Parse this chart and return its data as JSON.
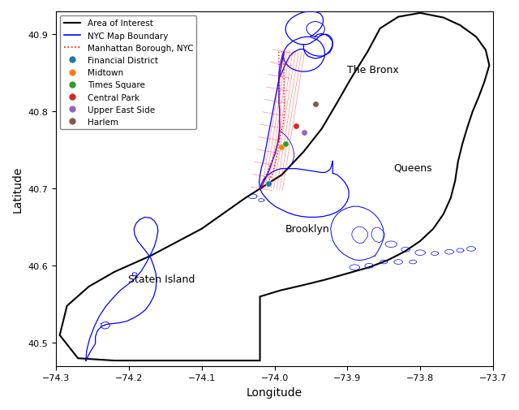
{
  "xlabel": "Longitude",
  "ylabel": "Latitude",
  "xlim": [
    -74.3,
    -73.7
  ],
  "ylim": [
    40.47,
    40.93
  ],
  "xticks": [
    -74.3,
    -74.2,
    -74.1,
    -74.0,
    -73.9,
    -73.8,
    -73.7
  ],
  "yticks": [
    40.5,
    40.6,
    40.7,
    40.8,
    40.9
  ],
  "poi": [
    {
      "name": "Financial District",
      "lon": -74.008,
      "lat": 40.707,
      "color": "#1f77b4"
    },
    {
      "name": "Midtown",
      "lon": -73.99,
      "lat": 40.754,
      "color": "#ff7f0e"
    },
    {
      "name": "Times Square",
      "lon": -73.985,
      "lat": 40.758,
      "color": "#2ca02c"
    },
    {
      "name": "Central Park",
      "lon": -73.97,
      "lat": 40.782,
      "color": "#d62728"
    },
    {
      "name": "Upper East Side",
      "lon": -73.959,
      "lat": 40.773,
      "color": "#9467bd"
    },
    {
      "name": "Harlem",
      "lon": -73.944,
      "lat": 40.81,
      "color": "#8c564b"
    }
  ],
  "borough_labels": [
    {
      "name": "The Bronx",
      "lon": -73.865,
      "lat": 40.855
    },
    {
      "name": "Queens",
      "lon": -73.81,
      "lat": 40.728
    },
    {
      "name": "Brooklyn",
      "lon": -73.955,
      "lat": 40.648
    },
    {
      "name": "Staten Island",
      "lon": -74.155,
      "lat": 40.583
    }
  ],
  "aoi_color": "black",
  "nyc_color": "blue",
  "manhattan_color": "red",
  "grid_color": "red",
  "legend_loc": "upper left",
  "figsize": [
    6.4,
    5.06
  ],
  "dpi": 100
}
